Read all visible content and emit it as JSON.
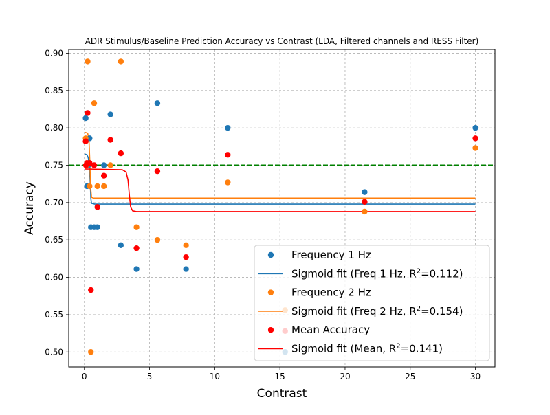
{
  "chart_data": {
    "type": "scatter",
    "title": "ADR Stimulus/Baseline Prediction Accuracy vs Contrast (LDA, Filtered channels and RESS Filter)",
    "xlabel": "Contrast",
    "ylabel": "Accuracy",
    "xlim": [
      -1.2,
      31.5
    ],
    "ylim": [
      0.48,
      0.905
    ],
    "xticks": [
      0,
      5,
      10,
      15,
      20,
      25,
      30
    ],
    "xtick_labels": [
      "0",
      "5",
      "10",
      "15",
      "20",
      "25",
      "30"
    ],
    "yticks": [
      0.5,
      0.55,
      0.6,
      0.65,
      0.7,
      0.75,
      0.8,
      0.85,
      0.9
    ],
    "ytick_labels": [
      "0.50",
      "0.55",
      "0.60",
      "0.65",
      "0.70",
      "0.75",
      "0.80",
      "0.85",
      "0.90"
    ],
    "grid": true,
    "legend_position": "lower-right",
    "reference_line": {
      "y": 0.75,
      "color": "#008000",
      "style": "dashed"
    },
    "series": [
      {
        "name": "Frequency 1 Hz",
        "kind": "scatter",
        "color": "#1f77b4",
        "points": [
          [
            0.1,
            0.813
          ],
          [
            0.2,
            0.722
          ],
          [
            0.3,
            0.75
          ],
          [
            0.4,
            0.786
          ],
          [
            0.5,
            0.667
          ],
          [
            0.75,
            0.667
          ],
          [
            1.0,
            0.667
          ],
          [
            1.5,
            0.75
          ],
          [
            2.0,
            0.818
          ],
          [
            2.8,
            0.643
          ],
          [
            4.0,
            0.611
          ],
          [
            5.6,
            0.833
          ],
          [
            7.8,
            0.611
          ],
          [
            11.0,
            0.8
          ],
          [
            15.4,
            0.5
          ],
          [
            21.5,
            0.714
          ],
          [
            30.0,
            0.8
          ]
        ]
      },
      {
        "name": "Sigmoid fit (Freq 1 Hz, R²=0.112)",
        "kind": "line",
        "color": "#1f77b4",
        "points": [
          [
            0.05,
            0.765
          ],
          [
            0.2,
            0.764
          ],
          [
            0.3,
            0.76
          ],
          [
            0.4,
            0.745
          ],
          [
            0.45,
            0.725
          ],
          [
            0.5,
            0.705
          ],
          [
            0.55,
            0.699
          ],
          [
            0.8,
            0.698
          ],
          [
            30.0,
            0.698
          ]
        ]
      },
      {
        "name": "Frequency 2 Hz",
        "kind": "scatter",
        "color": "#ff7f0e",
        "points": [
          [
            0.1,
            0.786
          ],
          [
            0.15,
            0.75
          ],
          [
            0.25,
            0.889
          ],
          [
            0.4,
            0.722
          ],
          [
            0.5,
            0.5
          ],
          [
            0.75,
            0.833
          ],
          [
            1.0,
            0.722
          ],
          [
            1.5,
            0.722
          ],
          [
            2.0,
            0.75
          ],
          [
            2.8,
            0.889
          ],
          [
            4.0,
            0.667
          ],
          [
            5.6,
            0.65
          ],
          [
            7.8,
            0.643
          ],
          [
            11.0,
            0.727
          ],
          [
            15.4,
            0.556
          ],
          [
            21.5,
            0.688
          ],
          [
            30.0,
            0.773
          ]
        ]
      },
      {
        "name": "Sigmoid fit (Freq 2 Hz, R²=0.154)",
        "kind": "line",
        "color": "#ff7f0e",
        "points": [
          [
            0.05,
            0.794
          ],
          [
            0.25,
            0.793
          ],
          [
            0.35,
            0.785
          ],
          [
            0.42,
            0.755
          ],
          [
            0.48,
            0.72
          ],
          [
            0.55,
            0.707
          ],
          [
            0.7,
            0.706
          ],
          [
            30.0,
            0.706
          ]
        ]
      },
      {
        "name": "Mean Accuracy",
        "kind": "scatter",
        "color": "#ff0000",
        "points": [
          [
            0.1,
            0.782
          ],
          [
            0.12,
            0.75
          ],
          [
            0.2,
            0.753
          ],
          [
            0.25,
            0.82
          ],
          [
            0.4,
            0.753
          ],
          [
            0.5,
            0.583
          ],
          [
            0.75,
            0.75
          ],
          [
            1.0,
            0.694
          ],
          [
            1.5,
            0.736
          ],
          [
            2.0,
            0.784
          ],
          [
            2.8,
            0.766
          ],
          [
            4.0,
            0.639
          ],
          [
            5.6,
            0.742
          ],
          [
            7.8,
            0.627
          ],
          [
            11.0,
            0.764
          ],
          [
            15.4,
            0.528
          ],
          [
            21.5,
            0.701
          ],
          [
            30.0,
            0.786
          ]
        ]
      },
      {
        "name": "Sigmoid fit (Mean, R²=0.141)",
        "kind": "line",
        "color": "#ff0000",
        "points": [
          [
            0.05,
            0.745
          ],
          [
            2.9,
            0.744
          ],
          [
            3.2,
            0.741
          ],
          [
            3.35,
            0.73
          ],
          [
            3.45,
            0.71
          ],
          [
            3.55,
            0.694
          ],
          [
            3.7,
            0.689
          ],
          [
            4.0,
            0.688
          ],
          [
            30.0,
            0.688
          ]
        ]
      }
    ],
    "legend": [
      {
        "label": "Frequency 1 Hz",
        "marker": "dot",
        "color": "#1f77b4"
      },
      {
        "label_prefix": "Sigmoid fit (Freq 1 Hz, R",
        "label_sup": "2",
        "label_suffix": "=0.112)",
        "marker": "line",
        "color": "#1f77b4"
      },
      {
        "label": "Frequency 2 Hz",
        "marker": "dot",
        "color": "#ff7f0e"
      },
      {
        "label_prefix": "Sigmoid fit (Freq 2 Hz, R",
        "label_sup": "2",
        "label_suffix": "=0.154)",
        "marker": "line",
        "color": "#ff7f0e"
      },
      {
        "label": "Mean Accuracy",
        "marker": "dot",
        "color": "#ff0000"
      },
      {
        "label_prefix": "Sigmoid fit (Mean, R",
        "label_sup": "2",
        "label_suffix": "=0.141)",
        "marker": "line",
        "color": "#ff0000"
      }
    ]
  }
}
